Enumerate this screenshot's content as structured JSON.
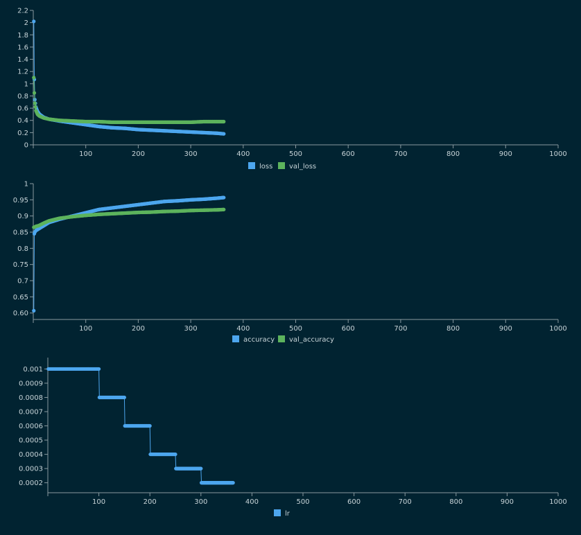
{
  "colors": {
    "background": "#012331",
    "blue": "#4da6ee",
    "green": "#5db35d",
    "axis": "#8a9aa0",
    "text": "#c8d4d8"
  },
  "chart_data": [
    {
      "type": "line",
      "grid": false,
      "legend_position": "bottom-center",
      "xlim": [
        0,
        1000
      ],
      "ylim": [
        0,
        2.2
      ],
      "x_ticks": [
        "100",
        "200",
        "300",
        "400",
        "500",
        "600",
        "700",
        "800",
        "900",
        "1000"
      ],
      "y_ticks": [
        "0",
        "0.2",
        "0.4",
        "0.6",
        "0.8",
        "1",
        "1.2",
        "1.4",
        "1.6",
        "1.8",
        "2",
        "2.2"
      ],
      "series": [
        {
          "name": "loss",
          "color": "#4da6ee",
          "x": [
            1,
            2,
            3,
            5,
            8,
            12,
            20,
            30,
            50,
            75,
            100,
            125,
            150,
            175,
            200,
            225,
            250,
            275,
            300,
            325,
            350,
            363
          ],
          "y": [
            2.02,
            1.07,
            0.74,
            0.62,
            0.55,
            0.5,
            0.45,
            0.42,
            0.39,
            0.36,
            0.33,
            0.3,
            0.28,
            0.27,
            0.25,
            0.24,
            0.23,
            0.22,
            0.21,
            0.2,
            0.19,
            0.18
          ]
        },
        {
          "name": "val_loss",
          "color": "#5db35d",
          "x": [
            1,
            2,
            3,
            5,
            8,
            12,
            20,
            30,
            50,
            75,
            100,
            125,
            150,
            175,
            200,
            225,
            250,
            275,
            300,
            325,
            350,
            363
          ],
          "y": [
            1.1,
            0.85,
            0.68,
            0.56,
            0.5,
            0.47,
            0.44,
            0.42,
            0.4,
            0.39,
            0.38,
            0.38,
            0.37,
            0.37,
            0.37,
            0.37,
            0.37,
            0.37,
            0.37,
            0.38,
            0.38,
            0.38
          ]
        }
      ]
    },
    {
      "type": "line",
      "grid": false,
      "legend_position": "bottom-center",
      "xlim": [
        0,
        1000
      ],
      "ylim": [
        0.58,
        1.0
      ],
      "x_ticks": [
        "100",
        "200",
        "300",
        "400",
        "500",
        "600",
        "700",
        "800",
        "900",
        "1000"
      ],
      "y_ticks": [
        "0.60",
        "0.65",
        "0.7",
        "0.75",
        "0.8",
        "0.85",
        "0.9",
        "0.95",
        "1"
      ],
      "series": [
        {
          "name": "accuracy",
          "color": "#4da6ee",
          "x": [
            1,
            2,
            3,
            5,
            10,
            20,
            30,
            50,
            75,
            100,
            125,
            150,
            175,
            200,
            225,
            250,
            275,
            300,
            325,
            350,
            363
          ],
          "y": [
            0.607,
            0.845,
            0.85,
            0.855,
            0.86,
            0.87,
            0.88,
            0.89,
            0.9,
            0.91,
            0.92,
            0.925,
            0.93,
            0.935,
            0.94,
            0.945,
            0.947,
            0.95,
            0.952,
            0.955,
            0.957
          ]
        },
        {
          "name": "val_accuracy",
          "color": "#5db35d",
          "x": [
            1,
            2,
            3,
            5,
            10,
            20,
            30,
            50,
            75,
            100,
            125,
            150,
            175,
            200,
            225,
            250,
            275,
            300,
            325,
            350,
            363
          ],
          "y": [
            0.865,
            0.865,
            0.866,
            0.868,
            0.87,
            0.878,
            0.885,
            0.893,
            0.898,
            0.902,
            0.905,
            0.907,
            0.909,
            0.911,
            0.912,
            0.914,
            0.915,
            0.917,
            0.918,
            0.919,
            0.92
          ]
        }
      ]
    },
    {
      "type": "line",
      "grid": false,
      "legend_position": "bottom-center",
      "xlim": [
        0,
        1000
      ],
      "ylim": [
        0.00013,
        0.00108
      ],
      "x_ticks": [
        "100",
        "200",
        "300",
        "400",
        "500",
        "600",
        "700",
        "800",
        "900",
        "1000"
      ],
      "y_ticks": [
        "0.0002",
        "0.0003",
        "0.0004",
        "0.0005",
        "0.0006",
        "0.0007",
        "0.0008",
        "0.0009",
        "0.001"
      ],
      "series": [
        {
          "name": "lr",
          "color": "#4da6ee",
          "x": [
            1,
            100,
            101,
            150,
            151,
            200,
            201,
            250,
            251,
            300,
            301,
            363
          ],
          "y": [
            0.001,
            0.001,
            0.0008,
            0.0008,
            0.0006,
            0.0006,
            0.0004,
            0.0004,
            0.0003,
            0.0003,
            0.0002,
            0.0002
          ]
        }
      ]
    }
  ]
}
